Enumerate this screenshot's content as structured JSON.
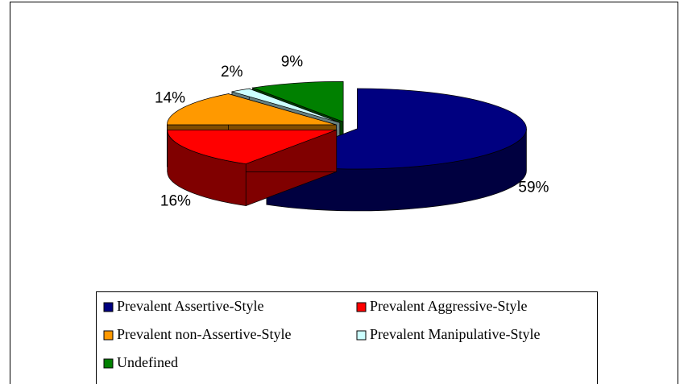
{
  "chart_data": {
    "type": "pie3d",
    "categories": [
      "Prevalent Assertive-Style",
      "Prevalent Aggressive-Style",
      "Prevalent non-Assertive-Style",
      "Prevalent Manipulative-Style",
      "Undefined"
    ],
    "values": [
      59,
      16,
      14,
      2,
      9
    ],
    "value_labels": [
      "59%",
      "16%",
      "14%",
      "2%",
      "9%"
    ],
    "colors": [
      "#000080",
      "#ff0000",
      "#ff9900",
      "#ccffff",
      "#008000"
    ],
    "legend": "bottom"
  }
}
